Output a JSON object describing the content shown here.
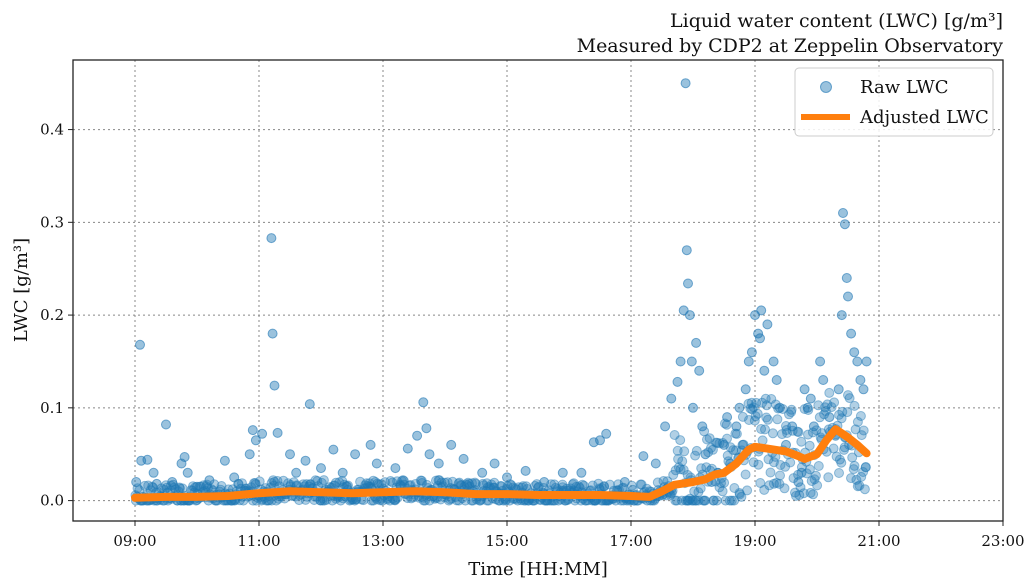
{
  "chart_data": {
    "type": "scatter",
    "title": "Liquid water content (LWC) [g/m³]",
    "subtitle": "Measured by CDP2 at Zeppelin Observatory",
    "xlabel": "Time [HH:MM]",
    "ylabel": "LWC [g/m³]",
    "x_unit": "hours",
    "xlim": [
      8.0,
      23.0
    ],
    "ylim": [
      -0.022,
      0.475
    ],
    "x_ticks": [
      9,
      11,
      13,
      15,
      17,
      19,
      21,
      23
    ],
    "x_tick_labels": [
      "09:00",
      "11:00",
      "13:00",
      "15:00",
      "17:00",
      "19:00",
      "21:00",
      "23:00"
    ],
    "y_ticks": [
      0.0,
      0.1,
      0.2,
      0.3,
      0.4
    ],
    "y_tick_labels": [
      "0.0",
      "0.1",
      "0.2",
      "0.3",
      "0.4"
    ],
    "grid": true,
    "legend_position": "top-right",
    "colors": {
      "raw": "#1f77b4",
      "adjusted": "#ff7f0e"
    },
    "series": [
      {
        "name": "Raw LWC",
        "kind": "scatter",
        "note_points": "representative points; dense cloud near baseline",
        "x": [
          9.02,
          9.08,
          9.1,
          9.2,
          9.3,
          9.35,
          9.5,
          9.6,
          9.75,
          9.8,
          9.85,
          10.0,
          10.2,
          10.45,
          10.6,
          10.85,
          10.9,
          10.95,
          11.05,
          11.2,
          11.22,
          11.25,
          11.3,
          11.5,
          11.6,
          11.75,
          11.82,
          12.0,
          12.2,
          12.35,
          12.55,
          12.8,
          12.9,
          13.2,
          13.4,
          13.55,
          13.65,
          13.7,
          13.75,
          13.9,
          14.1,
          14.3,
          14.6,
          14.8,
          15.0,
          15.3,
          15.6,
          15.9,
          16.2,
          16.4,
          16.5,
          16.6,
          16.9,
          17.2,
          17.4,
          17.55,
          17.65,
          17.75,
          17.8,
          17.85,
          17.88,
          17.9,
          17.92,
          17.95,
          17.98,
          18.0,
          18.05,
          18.1,
          18.15,
          18.2,
          18.3,
          18.4,
          18.5,
          18.55,
          18.6,
          18.7,
          18.75,
          18.8,
          18.85,
          18.9,
          18.95,
          19.0,
          19.05,
          19.08,
          19.1,
          19.15,
          19.2,
          19.3,
          19.35,
          19.4,
          19.5,
          19.6,
          19.7,
          19.75,
          19.8,
          19.85,
          19.9,
          19.95,
          20.05,
          20.1,
          20.2,
          20.3,
          20.35,
          20.4,
          20.42,
          20.45,
          20.48,
          20.5,
          20.55,
          20.6,
          20.65,
          20.7,
          20.75,
          20.8
        ],
        "y": [
          0.02,
          0.168,
          0.043,
          0.044,
          0.03,
          0.018,
          0.082,
          0.02,
          0.04,
          0.047,
          0.03,
          0.015,
          0.022,
          0.043,
          0.025,
          0.05,
          0.076,
          0.065,
          0.072,
          0.283,
          0.18,
          0.124,
          0.073,
          0.05,
          0.03,
          0.043,
          0.104,
          0.035,
          0.055,
          0.03,
          0.05,
          0.06,
          0.04,
          0.035,
          0.056,
          0.07,
          0.106,
          0.078,
          0.05,
          0.04,
          0.06,
          0.045,
          0.03,
          0.04,
          0.025,
          0.032,
          0.02,
          0.03,
          0.03,
          0.063,
          0.065,
          0.072,
          0.02,
          0.048,
          0.04,
          0.08,
          0.11,
          0.128,
          0.15,
          0.205,
          0.45,
          0.27,
          0.234,
          0.2,
          0.15,
          0.1,
          0.17,
          0.14,
          0.08,
          0.05,
          0.02,
          0.03,
          0.06,
          0.09,
          0.04,
          0.08,
          0.1,
          0.06,
          0.12,
          0.15,
          0.16,
          0.2,
          0.18,
          0.175,
          0.205,
          0.14,
          0.19,
          0.15,
          0.13,
          0.1,
          0.06,
          0.08,
          0.02,
          0.03,
          0.12,
          0.1,
          0.11,
          0.08,
          0.15,
          0.13,
          0.09,
          0.07,
          0.12,
          0.2,
          0.31,
          0.298,
          0.24,
          0.22,
          0.18,
          0.16,
          0.15,
          0.13,
          0.12,
          0.15
        ]
      },
      {
        "name": "Adjusted LWC",
        "kind": "line",
        "x": [
          9.0,
          9.5,
          10.0,
          10.5,
          11.0,
          11.5,
          12.0,
          12.5,
          13.0,
          13.5,
          14.0,
          14.5,
          15.0,
          15.5,
          16.0,
          16.5,
          17.0,
          17.3,
          17.5,
          17.7,
          18.0,
          18.2,
          18.35,
          18.5,
          18.7,
          18.9,
          19.0,
          19.2,
          19.5,
          19.7,
          19.8,
          20.0,
          20.15,
          20.3,
          20.5,
          20.65,
          20.8
        ],
        "y": [
          0.003,
          0.004,
          0.004,
          0.005,
          0.008,
          0.01,
          0.009,
          0.008,
          0.009,
          0.01,
          0.009,
          0.007,
          0.007,
          0.006,
          0.006,
          0.006,
          0.005,
          0.004,
          0.01,
          0.017,
          0.02,
          0.023,
          0.028,
          0.03,
          0.04,
          0.055,
          0.058,
          0.056,
          0.053,
          0.048,
          0.045,
          0.05,
          0.065,
          0.077,
          0.068,
          0.06,
          0.051
        ]
      }
    ]
  }
}
